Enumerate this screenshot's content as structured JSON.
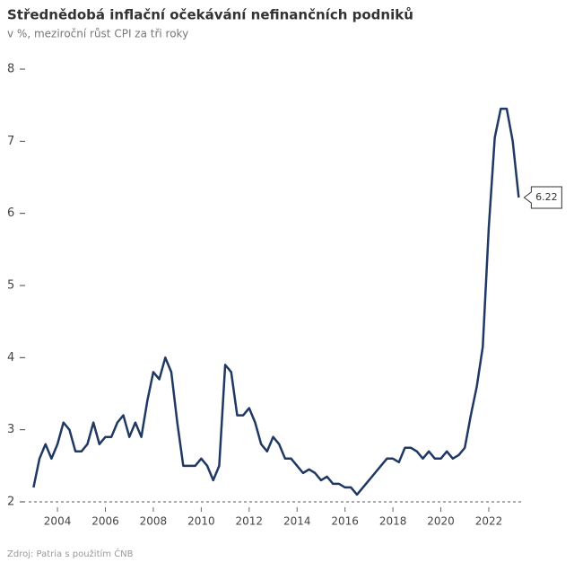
{
  "chart_data": {
    "type": "line",
    "title": "Střednědobá inflační očekávání nefinančních podniků",
    "subtitle": "v %, meziroční růst CPI za tři roky",
    "source": "Zdroj: Patria s použitím ČNB",
    "color": "#1f3864",
    "x": [
      2003,
      2003.25,
      2003.5,
      2003.75,
      2004,
      2004.25,
      2004.5,
      2004.75,
      2005,
      2005.25,
      2005.5,
      2005.75,
      2006,
      2006.25,
      2006.5,
      2006.75,
      2007,
      2007.25,
      2007.5,
      2007.75,
      2008,
      2008.25,
      2008.5,
      2008.75,
      2009,
      2009.25,
      2009.5,
      2009.75,
      2010,
      2010.25,
      2010.5,
      2010.75,
      2011,
      2011.25,
      2011.5,
      2011.75,
      2012,
      2012.25,
      2012.5,
      2012.75,
      2013,
      2013.25,
      2013.5,
      2013.75,
      2014,
      2014.25,
      2014.5,
      2014.75,
      2015,
      2015.25,
      2015.5,
      2015.75,
      2016,
      2016.25,
      2016.5,
      2016.75,
      2017,
      2017.25,
      2017.5,
      2017.75,
      2018,
      2018.25,
      2018.5,
      2018.75,
      2019,
      2019.25,
      2019.5,
      2019.75,
      2020,
      2020.25,
      2020.5,
      2020.75,
      2021,
      2021.25,
      2021.5,
      2021.75,
      2022,
      2022.25,
      2022.5,
      2022.75,
      2023,
      2023.25
    ],
    "values": [
      2.2,
      2.6,
      2.8,
      2.6,
      2.8,
      3.1,
      3.0,
      2.7,
      2.7,
      2.8,
      3.1,
      2.8,
      2.9,
      2.9,
      3.1,
      3.2,
      2.9,
      3.1,
      2.9,
      3.4,
      3.8,
      3.7,
      4.0,
      3.8,
      3.1,
      2.5,
      2.5,
      2.5,
      2.6,
      2.5,
      2.3,
      2.5,
      3.9,
      3.8,
      3.2,
      3.2,
      3.3,
      3.1,
      2.8,
      2.7,
      2.9,
      2.8,
      2.6,
      2.6,
      2.5,
      2.4,
      2.45,
      2.4,
      2.3,
      2.35,
      2.25,
      2.25,
      2.2,
      2.2,
      2.1,
      2.2,
      2.3,
      2.4,
      2.5,
      2.6,
      2.6,
      2.55,
      2.75,
      2.75,
      2.7,
      2.6,
      2.7,
      2.6,
      2.6,
      2.7,
      2.6,
      2.65,
      2.75,
      3.2,
      3.6,
      4.15,
      5.8,
      7.05,
      7.45,
      7.45,
      7.0,
      6.22
    ],
    "xlim": [
      2002.35,
      2024.06
    ],
    "xticks": [
      2004,
      2006,
      2008,
      2010,
      2012,
      2014,
      2016,
      2018,
      2020,
      2022
    ],
    "ylim": [
      2,
      8
    ],
    "yticks": [
      2,
      3,
      4,
      5,
      6,
      7,
      8
    ]
  }
}
